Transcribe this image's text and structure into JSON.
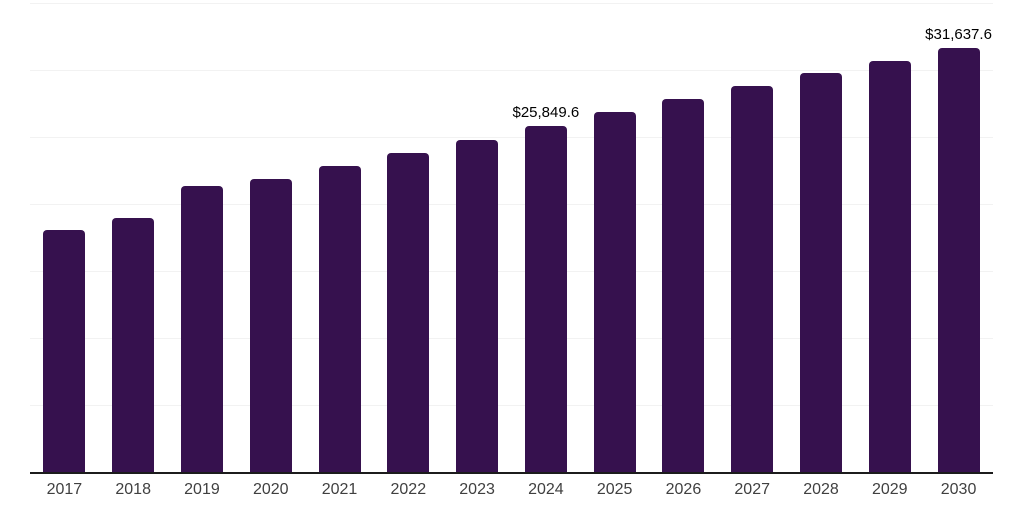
{
  "chart_data": {
    "type": "bar",
    "title": "",
    "xlabel": "",
    "ylabel": "",
    "categories": [
      "2017",
      "2018",
      "2019",
      "2020",
      "2021",
      "2022",
      "2023",
      "2024",
      "2025",
      "2026",
      "2027",
      "2028",
      "2029",
      "2030"
    ],
    "values": [
      18080,
      18940,
      21330,
      21900,
      22850,
      23770,
      24760,
      25849.6,
      26830,
      27820,
      28840,
      29760,
      30690,
      31637.6
    ],
    "data_labels": [
      {
        "category": "2024",
        "text": "$25,849.6"
      },
      {
        "category": "2030",
        "text": "$31,637.6"
      }
    ],
    "ylim": [
      0,
      35000
    ],
    "grid_step": 5000,
    "grid": "horizontal-only",
    "legend": "none",
    "y_axis_tick_labels": "none",
    "colors": {
      "bar": "#36114E",
      "grid": "#f2f2f2",
      "axis": "#1c1c1c",
      "tick_text": "#404040",
      "value_text": "#000000",
      "background": "#ffffff"
    }
  }
}
